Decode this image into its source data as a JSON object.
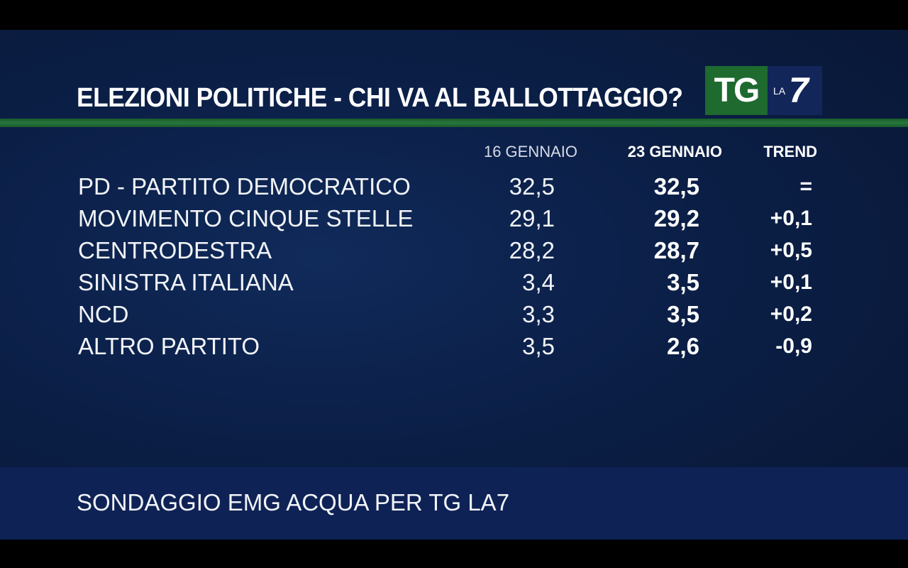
{
  "title": "ELEZIONI POLITICHE - CHI VA AL BALLOTTAGGIO?",
  "logo": {
    "tg": "TG",
    "la": "LA",
    "seven": "7"
  },
  "columns": {
    "date1": "16 GENNAIO",
    "date2": "23 GENNAIO",
    "trend": "TREND"
  },
  "rows": [
    {
      "party": "PD - PARTITO DEMOCRATICO",
      "v16": "32,5",
      "v23": "32,5",
      "trend": "="
    },
    {
      "party": "MOVIMENTO CINQUE STELLE",
      "v16": "29,1",
      "v23": "29,2",
      "trend": "+0,1"
    },
    {
      "party": "CENTRODESTRA",
      "v16": "28,2",
      "v23": "28,7",
      "trend": "+0,5"
    },
    {
      "party": "SINISTRA ITALIANA",
      "v16": "3,4",
      "v23": "3,5",
      "trend": "+0,1"
    },
    {
      "party": "NCD",
      "v16": "3,3",
      "v23": "3,5",
      "trend": "+0,2"
    },
    {
      "party": "ALTRO PARTITO",
      "v16": "3,5",
      "v23": "2,6",
      "trend": "-0,9"
    }
  ],
  "source": "SONDAGGIO EMG ACQUA PER TG LA7",
  "colors": {
    "background": "#0b1f47",
    "accent_green": "#27773b",
    "footer_band": "#0e2255",
    "text": "#ffffff"
  }
}
